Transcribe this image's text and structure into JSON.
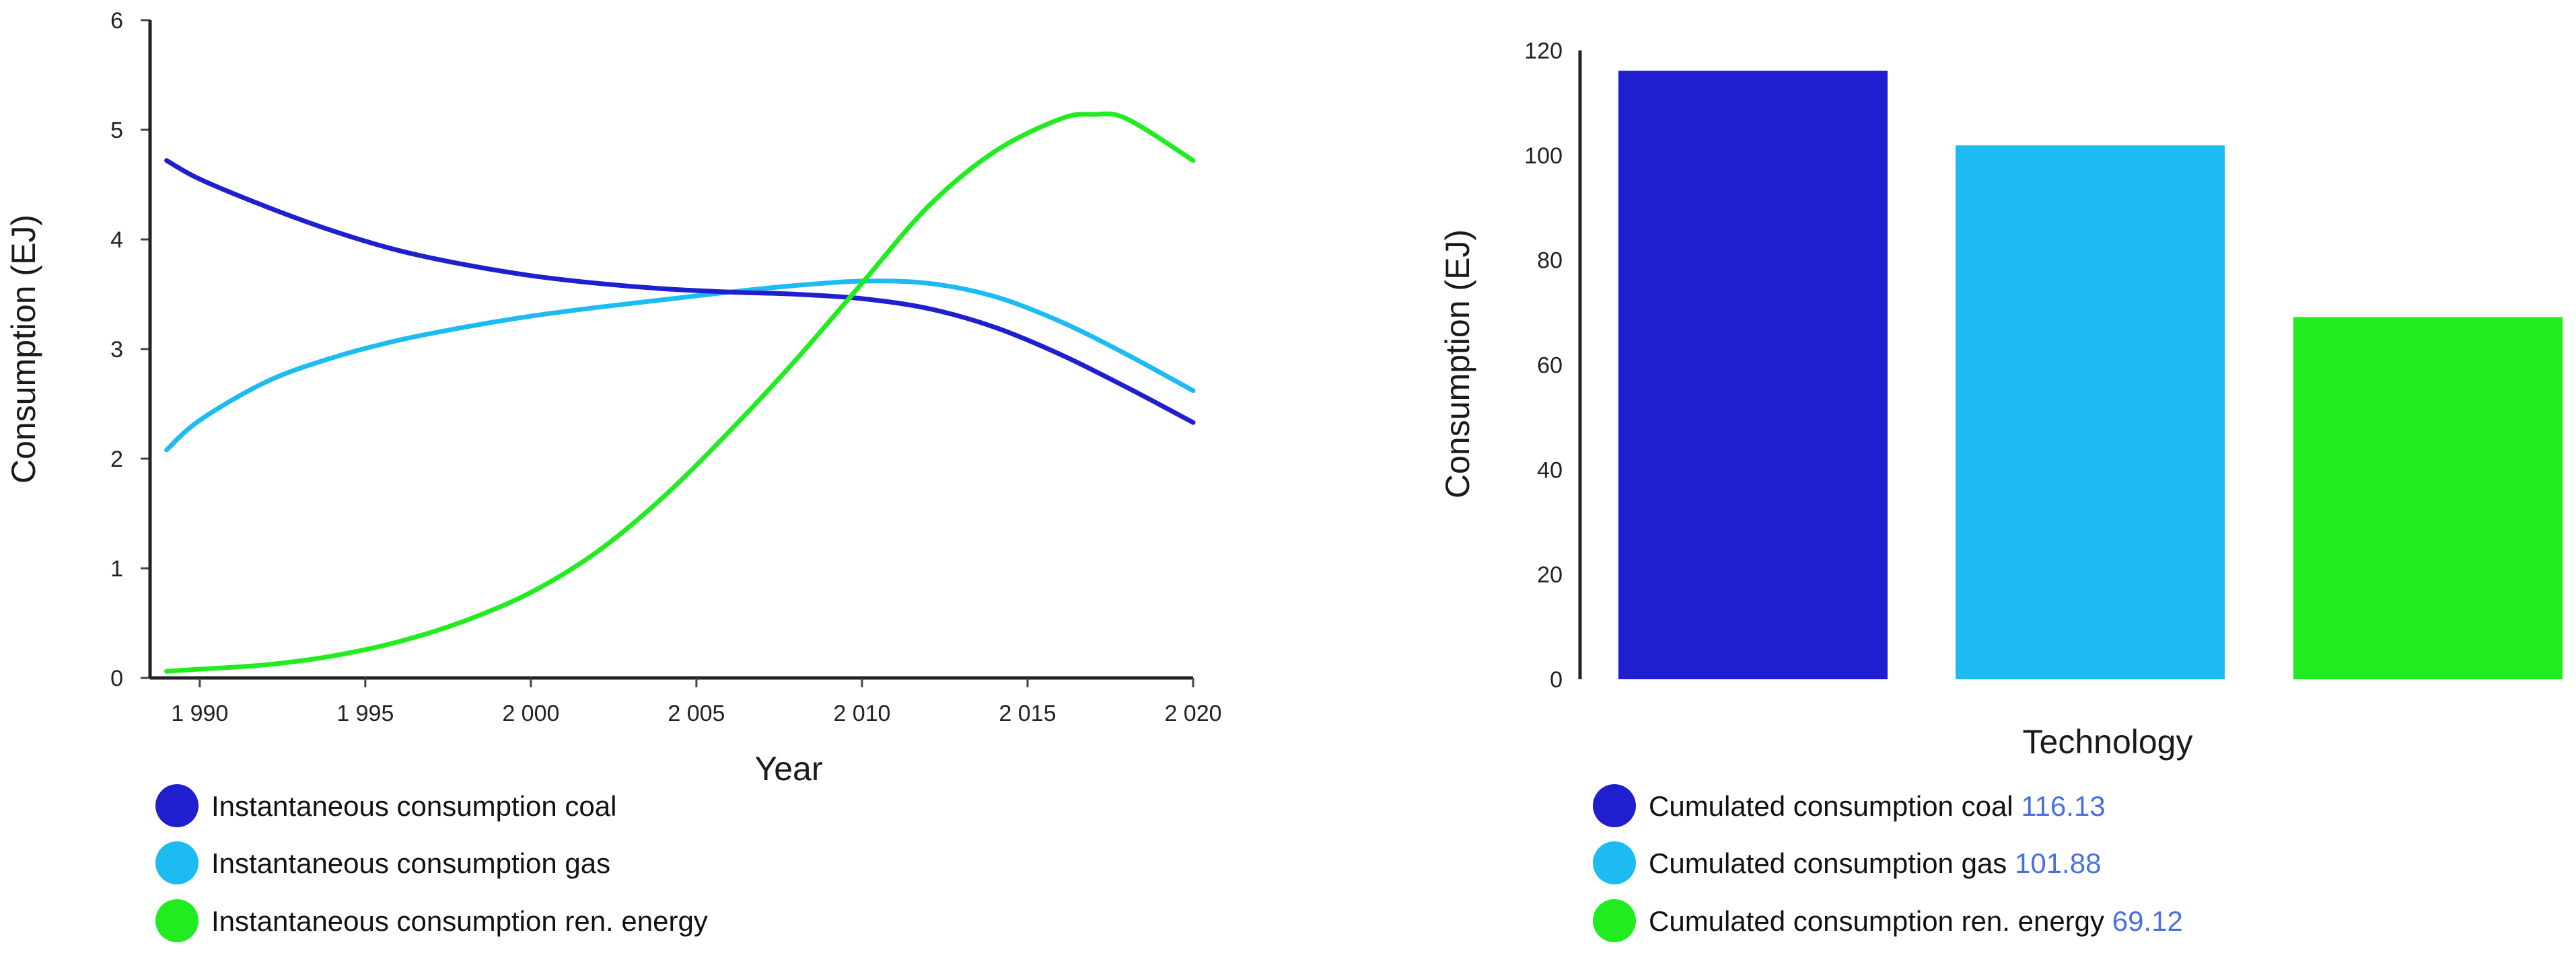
{
  "chart_data": [
    {
      "type": "line",
      "xlabel": "Year",
      "ylabel": "Consumption (EJ)",
      "xlim": [
        1988.5,
        2020
      ],
      "ylim": [
        0,
        6
      ],
      "x_ticks": [
        1990,
        1995,
        2000,
        2005,
        2010,
        2015,
        2020
      ],
      "x_tick_labels": [
        "1 990",
        "1 995",
        "2 000",
        "2 005",
        "2 010",
        "2 015",
        "2 020"
      ],
      "y_ticks": [
        0,
        1,
        2,
        3,
        4,
        5,
        6
      ],
      "y_tick_labels": [
        "0",
        "1",
        "2",
        "3",
        "4",
        "5",
        "6"
      ],
      "series": [
        {
          "name": "Instantaneous consumption coal",
          "color": "#1f1fd0",
          "x": [
            1989,
            1990,
            1992,
            1994,
            1996,
            1998,
            2000,
            2002,
            2004,
            2006,
            2008,
            2010,
            2012,
            2014,
            2016,
            2018,
            2020
          ],
          "y": [
            4.72,
            4.55,
            4.3,
            4.08,
            3.9,
            3.77,
            3.67,
            3.6,
            3.55,
            3.52,
            3.5,
            3.46,
            3.37,
            3.2,
            2.95,
            2.65,
            2.33
          ]
        },
        {
          "name": "Instantaneous consumption gas",
          "color": "#1cbcf2",
          "x": [
            1989,
            1990,
            1992,
            1994,
            1996,
            1998,
            2000,
            2002,
            2004,
            2006,
            2008,
            2010,
            2012,
            2014,
            2016,
            2018,
            2020
          ],
          "y": [
            2.08,
            2.35,
            2.7,
            2.92,
            3.08,
            3.2,
            3.3,
            3.38,
            3.45,
            3.52,
            3.58,
            3.62,
            3.6,
            3.48,
            3.25,
            2.95,
            2.62
          ]
        },
        {
          "name": "Instantaneous consumption ren. energy",
          "color": "#20ec20",
          "x": [
            1989,
            1990,
            1992,
            1994,
            1996,
            1998,
            2000,
            2002,
            2004,
            2006,
            2008,
            2010,
            2012,
            2014,
            2016,
            2017,
            2018,
            2020
          ],
          "y": [
            0.06,
            0.08,
            0.12,
            0.2,
            0.33,
            0.52,
            0.78,
            1.15,
            1.65,
            2.25,
            2.9,
            3.6,
            4.3,
            4.8,
            5.1,
            5.14,
            5.1,
            4.72
          ]
        }
      ]
    },
    {
      "type": "bar",
      "xlabel": "Technology",
      "ylabel": "Consumption (EJ)",
      "ylim": [
        0,
        120
      ],
      "y_ticks": [
        0,
        20,
        40,
        60,
        80,
        100,
        120
      ],
      "y_tick_labels": [
        "0",
        "20",
        "40",
        "60",
        "80",
        "100",
        "120"
      ],
      "categories": [
        "Cumulated consumption coal",
        "Cumulated consumption gas",
        "Cumulated consumption ren. energy"
      ],
      "values": [
        116.13,
        101.88,
        69.12
      ],
      "value_labels": [
        "116.13",
        "101.88",
        "69.12"
      ],
      "colors": [
        "#1f1fd0",
        "#1cbcf2",
        "#20ec20"
      ]
    }
  ]
}
